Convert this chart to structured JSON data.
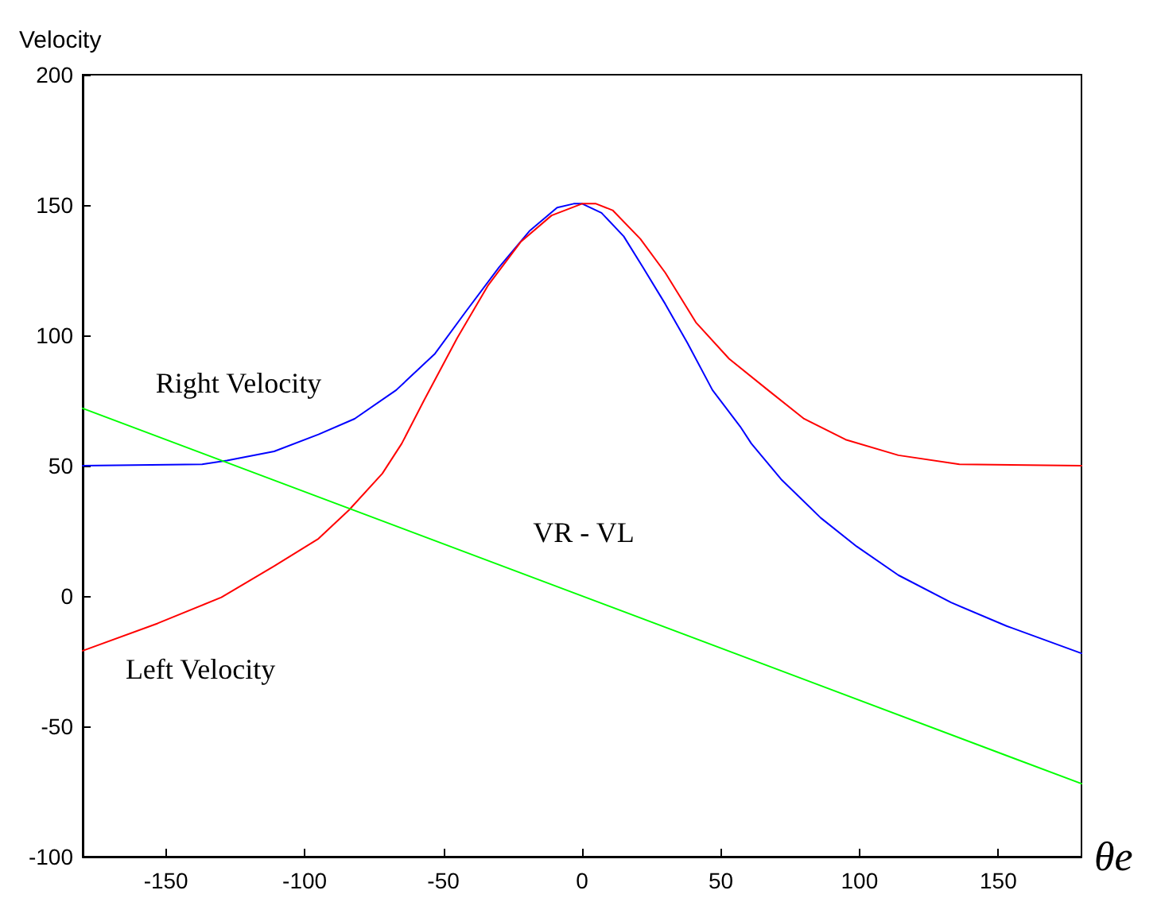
{
  "chart_data": {
    "type": "line",
    "xlabel": "θe",
    "ylabel": "Velocity",
    "xlim": [
      -180,
      180
    ],
    "xticks": [
      -150,
      -100,
      -50,
      0,
      50,
      100,
      150
    ],
    "ylim": [
      -100,
      200
    ],
    "yticks": [
      -100,
      -50,
      0,
      50,
      100,
      150,
      200
    ],
    "grid": false,
    "marker": "none",
    "line_style": "solid",
    "series": [
      {
        "color": "#0000ff",
        "x": [
          -180,
          -137,
          -128,
          -111,
          -95,
          -82,
          -67,
          -53,
          -42,
          -30,
          -19,
          -9,
          -3,
          0,
          7,
          15,
          22,
          30,
          38,
          47,
          57,
          61,
          72,
          86,
          99,
          114,
          133,
          153,
          180
        ],
        "values": [
          50,
          50.5,
          52,
          55.5,
          62,
          68,
          79,
          93,
          109,
          126,
          140,
          149,
          150.5,
          150.5,
          147,
          138,
          126,
          112,
          97,
          79,
          65,
          58.5,
          44.5,
          30,
          19,
          8,
          -2.5,
          -11.5,
          -22
        ]
      },
      {
        "color": "#ff0000",
        "x": [
          -180,
          -153,
          -130,
          -111,
          -95,
          -84,
          -72,
          -65,
          -57,
          -45,
          -34,
          -22,
          -11,
          0,
          5,
          11,
          21,
          30,
          41,
          53,
          67,
          80,
          95,
          114,
          136,
          180
        ],
        "values": [
          -21,
          -10.5,
          -0.5,
          11.5,
          22,
          33,
          47,
          58.5,
          75,
          99,
          119,
          136,
          146,
          150.5,
          150.5,
          148,
          137,
          124,
          105,
          91,
          79,
          68,
          60,
          54,
          50.5,
          50
        ]
      },
      {
        "color": "#00ff00",
        "x": [
          -180,
          180
        ],
        "values": [
          72,
          -72
        ]
      }
    ],
    "annotations": [
      "Right Velocity",
      "Left Velocity",
      "VR - VL"
    ]
  }
}
